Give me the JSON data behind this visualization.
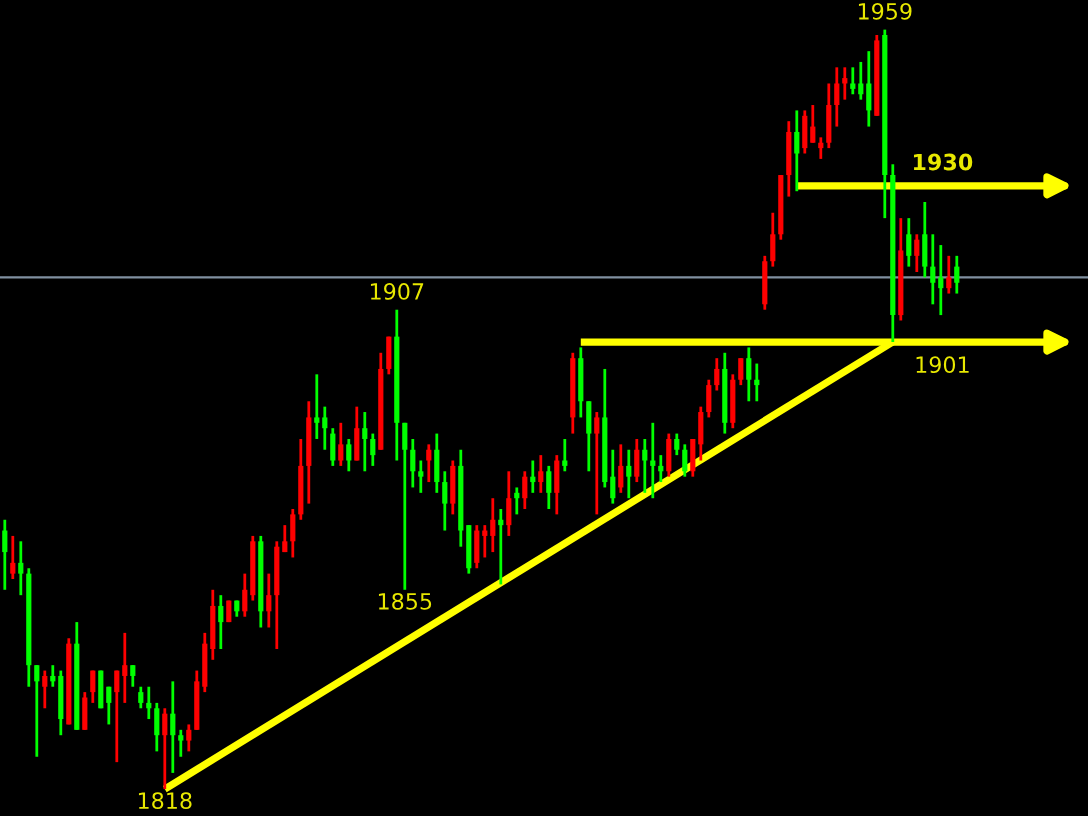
{
  "chart_data": {
    "type": "candlestick",
    "categories": [
      null,
      null,
      null,
      null,
      null,
      null,
      null,
      null,
      null,
      null,
      null,
      null,
      null,
      null,
      null,
      null,
      null,
      null,
      null,
      null,
      null,
      null,
      null,
      null,
      null,
      null,
      null,
      null,
      null,
      null,
      null,
      null,
      null,
      null,
      null,
      null,
      null,
      null,
      null,
      null,
      null,
      null,
      null,
      null,
      null,
      null,
      null,
      null,
      null,
      null,
      null,
      null,
      null,
      null,
      null,
      null,
      null,
      null,
      null,
      null,
      null,
      null,
      null,
      null,
      null,
      null,
      null,
      null,
      null,
      null,
      null,
      null,
      null,
      null,
      null,
      null,
      null,
      null,
      null,
      null,
      null,
      null,
      null,
      null,
      null,
      null,
      null,
      null,
      null,
      null,
      null,
      null,
      null,
      null,
      null,
      null,
      null,
      null,
      null,
      null,
      null,
      null,
      null,
      null,
      null,
      null,
      null,
      null,
      null,
      null,
      null,
      null,
      null,
      null,
      null,
      null,
      null,
      null,
      null,
      null
    ],
    "ylim": [
      1813,
      1964.5
    ],
    "ohlc": [
      [
        1866,
        1868,
        1855,
        1862
      ],
      [
        1858,
        1865,
        1857,
        1860
      ],
      [
        1860,
        1864,
        1854,
        1858
      ],
      [
        1858,
        1859,
        1837,
        1841
      ],
      [
        1841,
        1841,
        1824,
        1838
      ],
      [
        1837,
        1840,
        1833,
        1839
      ],
      [
        1839,
        1841,
        1837,
        1838
      ],
      [
        1839,
        1840,
        1828,
        1831
      ],
      [
        1830,
        1846,
        1830,
        1845
      ],
      [
        1845,
        1849,
        1829,
        1829
      ],
      [
        1829,
        1836,
        1829,
        1835
      ],
      [
        1836,
        1840,
        1834,
        1840
      ],
      [
        1840,
        1840,
        1833,
        1833
      ],
      [
        1837,
        1837,
        1830,
        1834
      ],
      [
        1836,
        1840,
        1823,
        1840
      ],
      [
        1839,
        1847,
        1834,
        1841
      ],
      [
        1841,
        1841,
        1837,
        1839
      ],
      [
        1836,
        1837,
        1833,
        1834
      ],
      [
        1834,
        1837,
        1831,
        1833
      ],
      [
        1833,
        1834,
        1825,
        1828
      ],
      [
        1828,
        1833,
        1818,
        1832
      ],
      [
        1832,
        1838,
        1821,
        1828
      ],
      [
        1828,
        1829,
        1824,
        1827
      ],
      [
        1827,
        1830,
        1825,
        1829
      ],
      [
        1829,
        1840,
        1829,
        1838
      ],
      [
        1837,
        1847,
        1836,
        1845
      ],
      [
        1844,
        1855,
        1842,
        1852
      ],
      [
        1852,
        1854,
        1844,
        1849
      ],
      [
        1849,
        1853,
        1849,
        1853
      ],
      [
        1853,
        1853,
        1850,
        1851
      ],
      [
        1851,
        1858,
        1850,
        1855
      ],
      [
        1854,
        1865,
        1853,
        1864
      ],
      [
        1864,
        1865,
        1848,
        1851
      ],
      [
        1851,
        1858,
        1848,
        1854
      ],
      [
        1854,
        1864,
        1844,
        1863
      ],
      [
        1862,
        1867,
        1862,
        1864
      ],
      [
        1864,
        1870,
        1861,
        1869
      ],
      [
        1869,
        1883,
        1868,
        1878
      ],
      [
        1878,
        1890,
        1871,
        1887
      ],
      [
        1887,
        1895,
        1883,
        1886
      ],
      [
        1887,
        1889,
        1881,
        1885
      ],
      [
        1884,
        1885,
        1878,
        1879
      ],
      [
        1879,
        1886,
        1878,
        1882
      ],
      [
        1882,
        1883,
        1877,
        1879
      ],
      [
        1879,
        1889,
        1879,
        1885
      ],
      [
        1885,
        1888,
        1877,
        1883
      ],
      [
        1883,
        1884,
        1878,
        1880
      ],
      [
        1881,
        1899,
        1881,
        1896
      ],
      [
        1896,
        1902,
        1895,
        1902
      ],
      [
        1902,
        1907,
        1879,
        1886
      ],
      [
        1886,
        1886,
        1855,
        1881
      ],
      [
        1881,
        1883,
        1874,
        1877
      ],
      [
        1877,
        1879,
        1873,
        1876
      ],
      [
        1879,
        1882,
        1875,
        1881
      ],
      [
        1881,
        1884,
        1873,
        1875
      ],
      [
        1875,
        1877,
        1866,
        1871
      ],
      [
        1871,
        1879,
        1869,
        1878
      ],
      [
        1878,
        1881,
        1863,
        1866
      ],
      [
        1867,
        1867,
        1858,
        1859
      ],
      [
        1860,
        1867,
        1859,
        1866
      ],
      [
        1865,
        1867,
        1861,
        1866
      ],
      [
        1865,
        1872,
        1862,
        1868
      ],
      [
        1868,
        1870,
        1856,
        1867
      ],
      [
        1867,
        1877,
        1865,
        1872
      ],
      [
        1873,
        1874,
        1869,
        1872
      ],
      [
        1872,
        1877,
        1870,
        1876
      ],
      [
        1876,
        1879,
        1873,
        1875
      ],
      [
        1875,
        1880,
        1873,
        1877
      ],
      [
        1877,
        1878,
        1870,
        1873
      ],
      [
        1873,
        1880,
        1869,
        1879
      ],
      [
        1879,
        1883,
        1877,
        1878
      ],
      [
        1887,
        1899,
        1884,
        1898
      ],
      [
        1898,
        1900,
        1887,
        1890
      ],
      [
        1890,
        1890,
        1877,
        1884
      ],
      [
        1884,
        1888,
        1869,
        1887
      ],
      [
        1887,
        1896,
        1874,
        1875
      ],
      [
        1876,
        1881,
        1871,
        1872
      ],
      [
        1874,
        1882,
        1873,
        1878
      ],
      [
        1878,
        1881,
        1872,
        1876
      ],
      [
        1876,
        1883,
        1875,
        1881
      ],
      [
        1881,
        1883,
        1873,
        1879
      ],
      [
        1879,
        1886,
        1872,
        1878
      ],
      [
        1878,
        1880,
        1875,
        1877
      ],
      [
        1877,
        1884,
        1876,
        1883
      ],
      [
        1883,
        1884,
        1880,
        1881
      ],
      [
        1881,
        1882,
        1876,
        1877
      ],
      [
        1877,
        1883,
        1876,
        1883
      ],
      [
        1882,
        1889,
        1879,
        1888
      ],
      [
        1888,
        1894,
        1887,
        1893
      ],
      [
        1893,
        1898,
        1892,
        1896
      ],
      [
        1896,
        1899,
        1884,
        1886
      ],
      [
        1886,
        1895,
        1885,
        1894
      ],
      [
        1894,
        1898,
        1893,
        1898
      ],
      [
        1898,
        1900,
        1890,
        1894
      ],
      [
        1894,
        1897,
        1890,
        1893
      ],
      [
        1908,
        1917,
        1907,
        1916
      ],
      [
        1916,
        1925,
        1915,
        1921
      ],
      [
        1921,
        1932,
        1920,
        1932
      ],
      [
        1932,
        1942,
        1928,
        1940
      ],
      [
        1940,
        1944,
        1929,
        1936
      ],
      [
        1937,
        1944,
        1936,
        1943
      ],
      [
        1938,
        1945,
        1938,
        1941
      ],
      [
        1937,
        1939,
        1935,
        1938
      ],
      [
        1938,
        1949,
        1937,
        1945
      ],
      [
        1945,
        1952,
        1941,
        1949
      ],
      [
        1949,
        1952,
        1946,
        1950
      ],
      [
        1949,
        1952,
        1947,
        1948
      ],
      [
        1949,
        1953,
        1946,
        1947
      ],
      [
        1949,
        1955,
        1941,
        1944
      ],
      [
        1943,
        1958,
        1943,
        1957
      ],
      [
        1958,
        1959,
        1924,
        1932
      ],
      [
        1932,
        1934,
        1901,
        1906
      ],
      [
        1906,
        1924,
        1905,
        1918
      ],
      [
        1921,
        1924,
        1915,
        1917
      ],
      [
        1917,
        1921,
        1914,
        1920
      ],
      [
        1921,
        1927,
        1913,
        1915
      ],
      [
        1915,
        1921,
        1908,
        1912
      ],
      [
        1913,
        1919,
        1906,
        1911
      ],
      [
        1911,
        1917,
        1910,
        1913
      ],
      [
        1915,
        1917,
        1910,
        1912
      ]
    ],
    "colors": [
      "#00ff00",
      "#ff0000",
      "#00ff00",
      "#00ff00",
      "#00ff00",
      "#ff0000",
      "#00ff00",
      "#00ff00",
      "#ff0000",
      "#00ff00",
      "#ff0000",
      "#ff0000",
      "#00ff00",
      "#00ff00",
      "#ff0000",
      "#ff0000",
      "#00ff00",
      "#00ff00",
      "#00ff00",
      "#00ff00",
      "#ff0000",
      "#00ff00",
      "#00ff00",
      "#ff0000",
      "#ff0000",
      "#ff0000",
      "#ff0000",
      "#00ff00",
      "#ff0000",
      "#00ff00",
      "#ff0000",
      "#ff0000",
      "#00ff00",
      "#ff0000",
      "#ff0000",
      "#ff0000",
      "#ff0000",
      "#ff0000",
      "#ff0000",
      "#00ff00",
      "#00ff00",
      "#00ff00",
      "#ff0000",
      "#00ff00",
      "#ff0000",
      "#00ff00",
      "#00ff00",
      "#ff0000",
      "#ff0000",
      "#00ff00",
      "#00ff00",
      "#00ff00",
      "#00ff00",
      "#ff0000",
      "#00ff00",
      "#00ff00",
      "#ff0000",
      "#00ff00",
      "#00ff00",
      "#ff0000",
      "#ff0000",
      "#ff0000",
      "#00ff00",
      "#ff0000",
      "#00ff00",
      "#ff0000",
      "#00ff00",
      "#ff0000",
      "#00ff00",
      "#ff0000",
      "#00ff00",
      "#ff0000",
      "#00ff00",
      "#00ff00",
      "#ff0000",
      "#00ff00",
      "#00ff00",
      "#ff0000",
      "#00ff00",
      "#ff0000",
      "#00ff00",
      "#00ff00",
      "#00ff00",
      "#ff0000",
      "#00ff00",
      "#00ff00",
      "#ff0000",
      "#ff0000",
      "#ff0000",
      "#ff0000",
      "#00ff00",
      "#ff0000",
      "#ff0000",
      "#00ff00",
      "#00ff00",
      "#ff0000",
      "#ff0000",
      "#ff0000",
      "#ff0000",
      "#00ff00",
      "#ff0000",
      "#ff0000",
      "#ff0000",
      "#ff0000",
      "#ff0000",
      "#ff0000",
      "#00ff00",
      "#00ff00",
      "#00ff00",
      "#ff0000",
      "#00ff00",
      "#00ff00",
      "#ff0000",
      "#00ff00",
      "#ff0000",
      "#00ff00",
      "#00ff00",
      "#00ff00",
      "#ff0000",
      "#00ff00"
    ],
    "series": [
      {
        "type": "line",
        "color": "#ffff00",
        "values": [
          null,
          null,
          null,
          null,
          null,
          null,
          null,
          null,
          null,
          null,
          null,
          null,
          null,
          null,
          null,
          null,
          null,
          null,
          null,
          null,
          1818,
          null,
          null,
          null,
          null,
          null,
          null,
          null,
          null,
          null,
          null,
          null,
          null,
          null,
          null,
          null,
          null,
          null,
          null,
          null,
          null,
          null,
          null,
          null,
          null,
          null,
          null,
          null,
          null,
          null,
          null,
          null,
          null,
          null,
          null,
          null,
          null,
          null,
          null,
          null,
          null,
          null,
          null,
          null,
          null,
          null,
          null,
          null,
          null,
          null,
          null,
          null,
          null,
          null,
          null,
          null,
          null,
          null,
          null,
          null,
          null,
          null,
          null,
          null,
          null,
          null,
          null,
          null,
          null,
          null,
          null,
          null,
          null,
          null,
          null,
          null,
          null,
          null,
          null,
          null,
          null,
          null,
          null,
          null,
          null,
          null,
          null,
          null,
          null,
          null,
          null,
          1901,
          null,
          null,
          null,
          null,
          null,
          null,
          null,
          null
        ]
      }
    ],
    "ref_lines": [
      {
        "axis": "y",
        "value": 1913,
        "color": "#8090a0"
      },
      {
        "axis": "y",
        "value": 1930,
        "label": "1930",
        "color": "#ffff00"
      },
      {
        "axis": "y",
        "value": 1901,
        "label": "1901",
        "color": "#ffff00"
      }
    ],
    "annotations": [
      {
        "text": "1959",
        "y": 1959
      },
      {
        "text": "1907",
        "y": 1907
      },
      {
        "text": "1855",
        "y": 1855
      },
      {
        "text": "1818",
        "y": 1818
      }
    ],
    "tick_labels": false,
    "legend": false
  }
}
